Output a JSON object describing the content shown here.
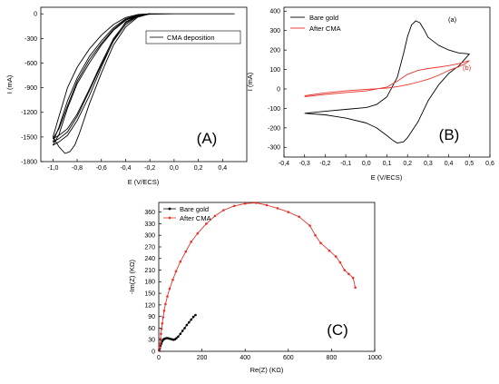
{
  "chart_data": [
    {
      "type": "line",
      "panel_label": "(A)",
      "xlabel": "E (V/ECS)",
      "ylabel": "I (mA)",
      "xlim": [
        -1.1,
        0.6
      ],
      "ylim": [
        -1800,
        80
      ],
      "x_ticks": [
        "-1,0",
        "-0,8",
        "-0,6",
        "-0,4",
        "-0,2",
        "0,0",
        "0,2",
        "0,4"
      ],
      "x_tick_values": [
        -1.0,
        -0.8,
        -0.6,
        -0.4,
        -0.2,
        0.0,
        0.2,
        0.4
      ],
      "y_ticks": [
        "0",
        "-300",
        "-600",
        "-900",
        "-1200",
        "-1500",
        "-1800"
      ],
      "y_tick_values": [
        0,
        -300,
        -600,
        -900,
        -1200,
        -1500,
        -1800
      ],
      "legend": [
        "CMA deposition"
      ],
      "series": [
        {
          "name": "CMA deposition",
          "color": "#000000",
          "x": [
            0.5,
            0.2,
            0.0,
            -0.2,
            -0.3,
            -0.4,
            -0.5,
            -0.6,
            -0.7,
            -0.8,
            -0.88,
            -0.95,
            -1.0,
            -0.95,
            -0.88,
            -0.8,
            -0.7,
            -0.6,
            -0.5,
            -0.4,
            -0.3,
            -0.2,
            0.0,
            0.5
          ],
          "y": [
            0,
            0,
            0,
            -5,
            -20,
            -100,
            -320,
            -650,
            -1000,
            -1300,
            -1480,
            -1560,
            -1600,
            -1470,
            -1150,
            -850,
            -600,
            -380,
            -200,
            -80,
            -20,
            0,
            0,
            0
          ]
        },
        {
          "name": "CMA deposition",
          "color": "#000000",
          "x": [
            -0.2,
            -0.3,
            -0.4,
            -0.5,
            -0.6,
            -0.7,
            -0.8,
            -0.88,
            -0.95,
            -1.0,
            -0.95,
            -0.88,
            -0.8,
            -0.7,
            -0.6,
            -0.5,
            -0.4,
            -0.3,
            -0.2
          ],
          "y": [
            0,
            -25,
            -110,
            -300,
            -600,
            -920,
            -1220,
            -1400,
            -1480,
            -1520,
            -1400,
            -1120,
            -820,
            -560,
            -360,
            -190,
            -70,
            -15,
            0
          ]
        },
        {
          "name": "CMA deposition",
          "color": "#000000",
          "x": [
            -0.2,
            -0.3,
            -0.4,
            -0.5,
            -0.6,
            -0.7,
            -0.8,
            -0.88,
            -0.95,
            -1.0,
            -0.95,
            -0.88,
            -0.8,
            -0.7,
            -0.6,
            -0.5,
            -0.4,
            -0.3,
            -0.2
          ],
          "y": [
            0,
            -30,
            -130,
            -330,
            -620,
            -940,
            -1250,
            -1440,
            -1520,
            -1560,
            -1380,
            -1060,
            -780,
            -520,
            -330,
            -170,
            -60,
            -12,
            0
          ]
        },
        {
          "name": "CMA deposition",
          "color": "#000000",
          "x": [
            -0.2,
            -0.3,
            -0.4,
            -0.5,
            -0.6,
            -0.7,
            -0.78,
            -0.82,
            -0.86,
            -0.9,
            -0.95,
            -1.0,
            -0.95,
            -0.88,
            -0.8,
            -0.7,
            -0.6,
            -0.5,
            -0.4,
            -0.3,
            -0.2
          ],
          "y": [
            0,
            -40,
            -160,
            -380,
            -720,
            -1100,
            -1450,
            -1600,
            -1680,
            -1700,
            -1620,
            -1500,
            -1250,
            -900,
            -650,
            -430,
            -260,
            -130,
            -45,
            -8,
            0
          ]
        }
      ]
    },
    {
      "type": "line",
      "panel_label": "(B)",
      "xlabel": "E (V/ECS)",
      "ylabel": "I (mA)",
      "xlim": [
        -0.4,
        0.6
      ],
      "ylim": [
        -350,
        420
      ],
      "x_ticks": [
        "-0,4",
        "-0,3",
        "-0,2",
        "-0,1",
        "0,0",
        "0,1",
        "0,2",
        "0,3",
        "0,4",
        "0,5",
        "0,6"
      ],
      "x_tick_values": [
        -0.4,
        -0.3,
        -0.2,
        -0.1,
        0.0,
        0.1,
        0.2,
        0.3,
        0.4,
        0.5,
        0.6
      ],
      "y_ticks": [
        "400",
        "300",
        "200",
        "100",
        "0",
        "-100",
        "-200",
        "-300"
      ],
      "y_tick_values": [
        400,
        300,
        200,
        100,
        0,
        -100,
        -200,
        -300
      ],
      "legend": [
        "Bare gold",
        "After CMA"
      ],
      "annotations": [
        "(a)",
        "(b)"
      ],
      "series": [
        {
          "name": "Bare gold",
          "color": "#000000",
          "x": [
            -0.3,
            -0.2,
            -0.1,
            0.0,
            0.05,
            0.1,
            0.15,
            0.18,
            0.2,
            0.22,
            0.24,
            0.26,
            0.28,
            0.3,
            0.35,
            0.4,
            0.45,
            0.5,
            0.45,
            0.4,
            0.35,
            0.3,
            0.25,
            0.2,
            0.18,
            0.15,
            0.13,
            0.1,
            0.05,
            0.0,
            -0.1,
            -0.2,
            -0.3
          ],
          "y": [
            -125,
            -115,
            -105,
            -95,
            -80,
            -40,
            60,
            180,
            270,
            330,
            350,
            340,
            305,
            265,
            225,
            200,
            185,
            180,
            120,
            80,
            20,
            -60,
            -170,
            -250,
            -272,
            -278,
            -265,
            -240,
            -200,
            -175,
            -150,
            -133,
            -125
          ]
        },
        {
          "name": "After CMA",
          "color": "#e8322a",
          "x": [
            -0.3,
            -0.2,
            -0.1,
            0.0,
            0.1,
            0.15,
            0.2,
            0.25,
            0.3,
            0.35,
            0.4,
            0.45,
            0.48,
            0.5,
            0.48,
            0.45,
            0.4,
            0.35,
            0.3,
            0.25,
            0.2,
            0.15,
            0.1,
            0.0,
            -0.1,
            -0.2,
            -0.3
          ],
          "y": [
            -40,
            -28,
            -18,
            -10,
            10,
            40,
            75,
            95,
            105,
            112,
            120,
            130,
            140,
            145,
            130,
            115,
            95,
            70,
            50,
            35,
            22,
            12,
            4,
            -2,
            -10,
            -20,
            -35
          ]
        }
      ]
    },
    {
      "type": "scatter",
      "panel_label": "(C)",
      "xlabel": "Re(Z) (KΩ)",
      "ylabel": "-Im(Z) (KΩ)",
      "xlim": [
        0,
        1000
      ],
      "ylim": [
        0,
        385
      ],
      "x_ticks": [
        "0",
        "200",
        "400",
        "600",
        "800",
        "1000"
      ],
      "x_tick_values": [
        0,
        200,
        400,
        600,
        800,
        1000
      ],
      "y_ticks": [
        "0",
        "30",
        "60",
        "90",
        "120",
        "150",
        "180",
        "210",
        "240",
        "270",
        "300",
        "330",
        "360"
      ],
      "y_tick_values": [
        0,
        30,
        60,
        90,
        120,
        150,
        180,
        210,
        240,
        270,
        300,
        330,
        360
      ],
      "legend": [
        "Bare gold",
        "After CMA"
      ],
      "series": [
        {
          "name": "Bare gold",
          "color": "#000000",
          "x": [
            2,
            5,
            8,
            12,
            16,
            20,
            25,
            30,
            36,
            42,
            48,
            55,
            62,
            68,
            75,
            82,
            90,
            100,
            110,
            120,
            130,
            140,
            150,
            160,
            170
          ],
          "y": [
            3,
            8,
            14,
            20,
            26,
            30,
            32,
            33,
            34,
            34,
            33,
            32,
            31,
            30,
            31,
            34,
            38,
            45,
            53,
            60,
            68,
            75,
            82,
            89,
            94
          ]
        },
        {
          "name": "After CMA",
          "color": "#e8322a",
          "x": [
            2,
            4,
            6,
            8,
            10,
            13,
            16,
            20,
            25,
            31,
            40,
            50,
            65,
            80,
            100,
            125,
            150,
            180,
            220,
            260,
            300,
            350,
            400,
            450,
            500,
            550,
            600,
            650,
            700,
            725,
            750,
            790,
            820,
            840,
            860,
            880,
            900,
            910
          ],
          "y": [
            2,
            10,
            20,
            32,
            45,
            58,
            72,
            88,
            105,
            122,
            142,
            162,
            185,
            207,
            232,
            258,
            283,
            305,
            330,
            350,
            365,
            376,
            382,
            384,
            378,
            370,
            360,
            348,
            325,
            300,
            280,
            260,
            245,
            230,
            210,
            200,
            190,
            165
          ]
        }
      ]
    }
  ]
}
